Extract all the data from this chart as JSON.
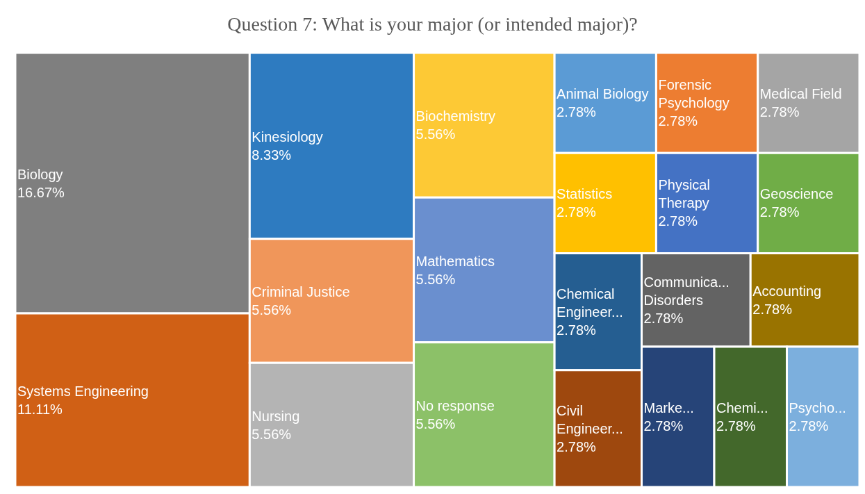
{
  "chart_data": {
    "type": "other",
    "title": "Question 7: What is your major (or intended major)?",
    "categories": [
      "Biology",
      "Systems Engineering",
      "Kinesiology",
      "Criminal Justice",
      "Nursing",
      "Biochemistry",
      "Mathematics",
      "No response",
      "Animal Biology",
      "Forensic Psychology",
      "Medical Field",
      "Statistics",
      "Physical Therapy",
      "Geoscience",
      "Chemical Engineer...",
      "Civil Engineer...",
      "Communica... Disorders",
      "Accounting",
      "Marke...",
      "Chemi...",
      "Psycho..."
    ],
    "values": [
      16.67,
      11.11,
      8.33,
      5.56,
      5.56,
      5.56,
      5.56,
      5.56,
      2.78,
      2.78,
      2.78,
      2.78,
      2.78,
      2.78,
      2.78,
      2.78,
      2.78,
      2.78,
      2.78,
      2.78,
      2.78
    ],
    "value_labels": [
      "16.67%",
      "11.11%",
      "8.33%",
      "5.56%",
      "5.56%",
      "5.56%",
      "5.56%",
      "5.56%",
      "2.78%",
      "2.78%",
      "2.78%",
      "2.78%",
      "2.78%",
      "2.78%",
      "2.78%",
      "2.78%",
      "2.78%",
      "2.78%",
      "2.78%",
      "2.78%",
      "2.78%"
    ],
    "colors": [
      "#7f7f7f",
      "#d06015",
      "#2e7bc0",
      "#f0965a",
      "#b4b4b4",
      "#fdc935",
      "#6a8fcf",
      "#8cc168",
      "#5b9bd5",
      "#ed7d31",
      "#a5a5a5",
      "#ffc000",
      "#4472c4",
      "#70ad47",
      "#255e91",
      "#9e480e",
      "#636363",
      "#997300",
      "#264478",
      "#43682b",
      "#7cafdd"
    ]
  }
}
